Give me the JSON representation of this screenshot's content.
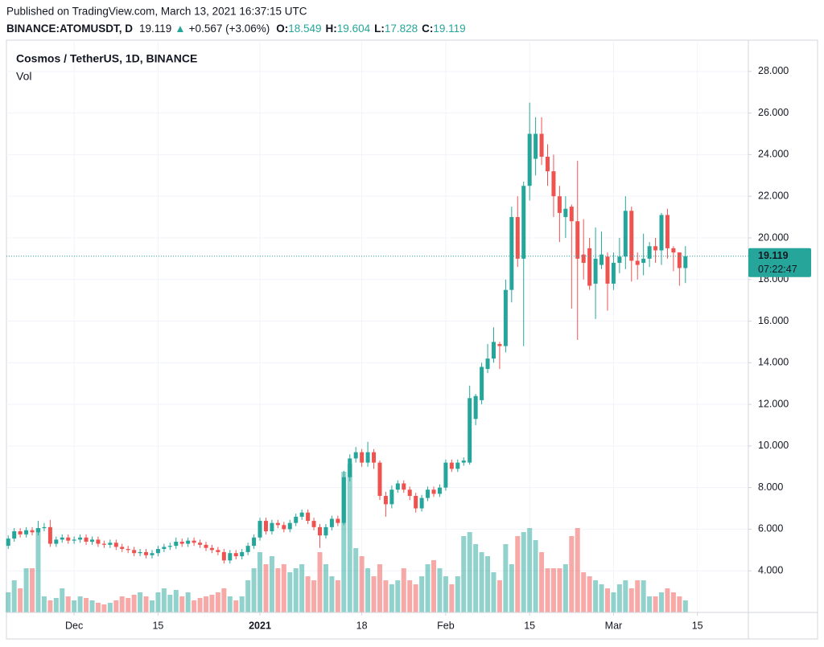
{
  "header": {
    "published": "Published on TradingView.com, March 13, 2021 16:37:15 UTC",
    "symbol": "BINANCE:ATOMUSDT, D",
    "price": "19.119",
    "arrow": "▲",
    "change": "+0.567 (+3.06%)",
    "ohlc": [
      {
        "label": "O:",
        "value": "18.549"
      },
      {
        "label": "H:",
        "value": "19.604"
      },
      {
        "label": "L:",
        "value": "17.828"
      },
      {
        "label": "C:",
        "value": "19.119"
      }
    ]
  },
  "chart_data": {
    "type": "candlestick",
    "title": "Cosmos / TetherUS, 1D, BINANCE",
    "volume_label": "Vol",
    "up_color": "#26a69a",
    "down_color": "#ef5350",
    "grid": true,
    "xlim": [
      -0.3,
      123.5
    ],
    "xticks": [
      {
        "value": 11,
        "label": "Dec"
      },
      {
        "value": 25,
        "label": "15"
      },
      {
        "value": 42,
        "label": "2021"
      },
      {
        "value": 59,
        "label": "18"
      },
      {
        "value": 73,
        "label": "Feb"
      },
      {
        "value": 87,
        "label": "15"
      },
      {
        "value": 101,
        "label": "Mar"
      },
      {
        "value": 115,
        "label": "15"
      }
    ],
    "ylim": [
      2,
      29.5
    ],
    "yticks": [
      {
        "value": 4,
        "label": "4.000"
      },
      {
        "value": 6,
        "label": "6.000"
      },
      {
        "value": 8,
        "label": "8.000"
      },
      {
        "value": 10,
        "label": "10.000"
      },
      {
        "value": 12,
        "label": "12.000"
      },
      {
        "value": 14,
        "label": "14.000"
      },
      {
        "value": 16,
        "label": "16.000"
      },
      {
        "value": 18,
        "label": "18.000"
      },
      {
        "value": 20,
        "label": "20.000"
      },
      {
        "value": 22,
        "label": "22.000"
      },
      {
        "value": 24,
        "label": "24.000"
      },
      {
        "value": 26,
        "label": "26.000"
      },
      {
        "value": 28,
        "label": "28.000"
      }
    ],
    "last_price": 19.119,
    "countdown": "07:22:47",
    "volume_lim": [
      0,
      200
    ],
    "open": [
      5.2,
      5.55,
      5.9,
      5.75,
      5.95,
      5.85,
      6.05,
      6.1,
      5.3,
      5.5,
      5.6,
      5.45,
      5.5,
      5.6,
      5.4,
      5.5,
      5.3,
      5.25,
      5.35,
      5.15,
      5.05,
      5.0,
      4.85,
      4.9,
      4.75,
      4.85,
      5.05,
      5.15,
      5.2,
      5.4,
      5.3,
      5.45,
      5.35,
      5.25,
      5.1,
      5.0,
      4.9,
      4.5,
      4.85,
      4.7,
      4.9,
      5.2,
      5.6,
      6.4,
      5.9,
      6.3,
      6.2,
      6.0,
      6.3,
      6.6,
      6.8,
      6.4,
      6.1,
      5.7,
      6.1,
      6.5,
      6.3,
      8.5,
      9.4,
      9.7,
      9.2,
      9.7,
      9.2,
      7.6,
      7.2,
      7.9,
      8.2,
      7.9,
      7.6,
      7.0,
      7.5,
      7.9,
      7.7,
      8.0,
      9.2,
      8.9,
      9.2,
      9.2,
      11.3,
      12.2,
      13.7,
      14.2,
      14.9,
      14.8,
      17.5,
      21.0,
      19.0,
      22.5,
      23.8,
      25.0,
      23.9,
      23.2,
      22.0,
      21.0,
      21.5,
      20.8,
      19.2,
      19.5,
      17.8,
      18.7,
      19.1,
      17.8,
      18.8,
      19.1,
      21.3,
      18.9,
      18.8,
      19.0,
      19.6,
      19.4,
      21.1,
      19.5,
      19.3,
      18.549
    ],
    "high": [
      5.7,
      6.05,
      6.05,
      6.1,
      6.1,
      6.4,
      6.3,
      6.45,
      5.65,
      5.75,
      5.75,
      5.65,
      5.75,
      5.75,
      5.65,
      5.65,
      5.45,
      5.5,
      5.5,
      5.3,
      5.2,
      5.15,
      5.05,
      5.05,
      5.0,
      5.2,
      5.3,
      5.35,
      5.6,
      5.55,
      5.6,
      5.6,
      5.5,
      5.4,
      5.25,
      5.15,
      5.05,
      5.0,
      5.0,
      5.05,
      5.35,
      5.75,
      6.55,
      6.55,
      6.45,
      6.45,
      6.35,
      6.45,
      6.75,
      6.95,
      6.95,
      6.55,
      6.25,
      6.25,
      6.65,
      6.65,
      8.8,
      9.6,
      9.95,
      9.85,
      10.2,
      9.85,
      9.3,
      7.8,
      8.1,
      8.35,
      8.35,
      8.05,
      7.75,
      7.65,
      8.05,
      8.05,
      8.15,
      9.35,
      9.35,
      9.35,
      9.45,
      12.9,
      12.5,
      14.0,
      14.9,
      15.7,
      15.0,
      18.0,
      21.5,
      22.0,
      22.7,
      26.5,
      25.8,
      25.8,
      24.5,
      24.0,
      22.5,
      22.0,
      21.6,
      23.7,
      20.9,
      20.0,
      20.5,
      20.3,
      19.3,
      19.3,
      20.0,
      22.0,
      21.5,
      19.3,
      20.2,
      19.8,
      20.0,
      21.2,
      21.4,
      19.6,
      19.3,
      19.604
    ],
    "low": [
      5.05,
      5.4,
      5.6,
      5.6,
      5.7,
      5.7,
      5.9,
      5.15,
      5.15,
      5.35,
      5.3,
      5.3,
      5.35,
      5.25,
      5.25,
      5.15,
      5.1,
      5.1,
      5.0,
      4.9,
      4.85,
      4.7,
      4.7,
      4.6,
      4.6,
      4.7,
      4.9,
      5.0,
      5.05,
      5.15,
      5.15,
      5.2,
      5.1,
      4.95,
      4.85,
      4.75,
      4.35,
      4.35,
      4.55,
      4.55,
      4.75,
      5.05,
      5.45,
      5.75,
      5.75,
      6.05,
      5.85,
      5.85,
      6.15,
      6.45,
      6.25,
      5.95,
      5.1,
      5.55,
      5.95,
      6.15,
      6.2,
      8.3,
      9.2,
      9.0,
      9.0,
      8.9,
      7.4,
      6.6,
      7.0,
      7.75,
      7.75,
      7.4,
      6.8,
      6.85,
      7.35,
      7.55,
      7.55,
      7.85,
      8.75,
      8.75,
      9.05,
      9.1,
      11.0,
      12.0,
      13.5,
      14.0,
      13.7,
      14.5,
      16.9,
      18.6,
      14.8,
      21.8,
      23.0,
      23.5,
      22.5,
      21.0,
      19.8,
      20.0,
      16.6,
      15.1,
      18.0,
      17.5,
      16.1,
      18.5,
      16.5,
      17.5,
      18.3,
      18.5,
      17.9,
      18.0,
      18.2,
      18.6,
      18.8,
      18.7,
      19.0,
      18.4,
      17.7,
      17.828
    ],
    "close": [
      5.55,
      5.9,
      5.75,
      5.95,
      5.85,
      6.05,
      6.1,
      5.3,
      5.5,
      5.6,
      5.45,
      5.5,
      5.6,
      5.4,
      5.5,
      5.3,
      5.25,
      5.35,
      5.15,
      5.05,
      5.0,
      4.85,
      4.9,
      4.75,
      4.85,
      5.05,
      5.15,
      5.2,
      5.4,
      5.3,
      5.45,
      5.35,
      5.25,
      5.1,
      5.0,
      4.9,
      4.5,
      4.85,
      4.7,
      4.9,
      5.2,
      5.6,
      6.4,
      5.9,
      6.3,
      6.2,
      6.0,
      6.3,
      6.6,
      6.8,
      6.4,
      6.1,
      5.7,
      6.1,
      6.5,
      6.3,
      8.5,
      9.4,
      9.7,
      9.2,
      9.7,
      9.2,
      7.6,
      7.2,
      7.9,
      8.2,
      7.9,
      7.6,
      7.0,
      7.5,
      7.9,
      7.7,
      8.0,
      9.2,
      8.9,
      9.2,
      9.3,
      12.3,
      12.4,
      13.8,
      14.2,
      15.0,
      14.8,
      17.5,
      21.0,
      19.0,
      22.5,
      25.0,
      25.0,
      23.9,
      23.2,
      22.0,
      21.2,
      21.4,
      20.8,
      19.0,
      18.8,
      17.7,
      19.0,
      19.2,
      17.8,
      18.8,
      19.1,
      21.3,
      18.9,
      18.7,
      19.0,
      19.6,
      19.4,
      21.1,
      19.5,
      19.3,
      18.55,
      19.119
    ],
    "volume": [
      25,
      40,
      30,
      55,
      55,
      105,
      20,
      15,
      18,
      30,
      20,
      15,
      20,
      18,
      15,
      12,
      10,
      12,
      15,
      20,
      18,
      22,
      25,
      20,
      15,
      25,
      30,
      22,
      28,
      20,
      25,
      15,
      18,
      20,
      22,
      25,
      30,
      20,
      15,
      20,
      40,
      55,
      75,
      60,
      70,
      55,
      60,
      50,
      55,
      60,
      45,
      40,
      75,
      60,
      45,
      40,
      175,
      185,
      80,
      70,
      55,
      45,
      60,
      40,
      35,
      40,
      55,
      40,
      35,
      45,
      60,
      65,
      55,
      45,
      35,
      45,
      95,
      100,
      85,
      75,
      70,
      50,
      40,
      85,
      60,
      95,
      100,
      105,
      90,
      75,
      55,
      55,
      55,
      60,
      95,
      105,
      50,
      45,
      40,
      35,
      30,
      25,
      35,
      40,
      30,
      40,
      40,
      20,
      20,
      25,
      30,
      25,
      20,
      15
    ]
  }
}
